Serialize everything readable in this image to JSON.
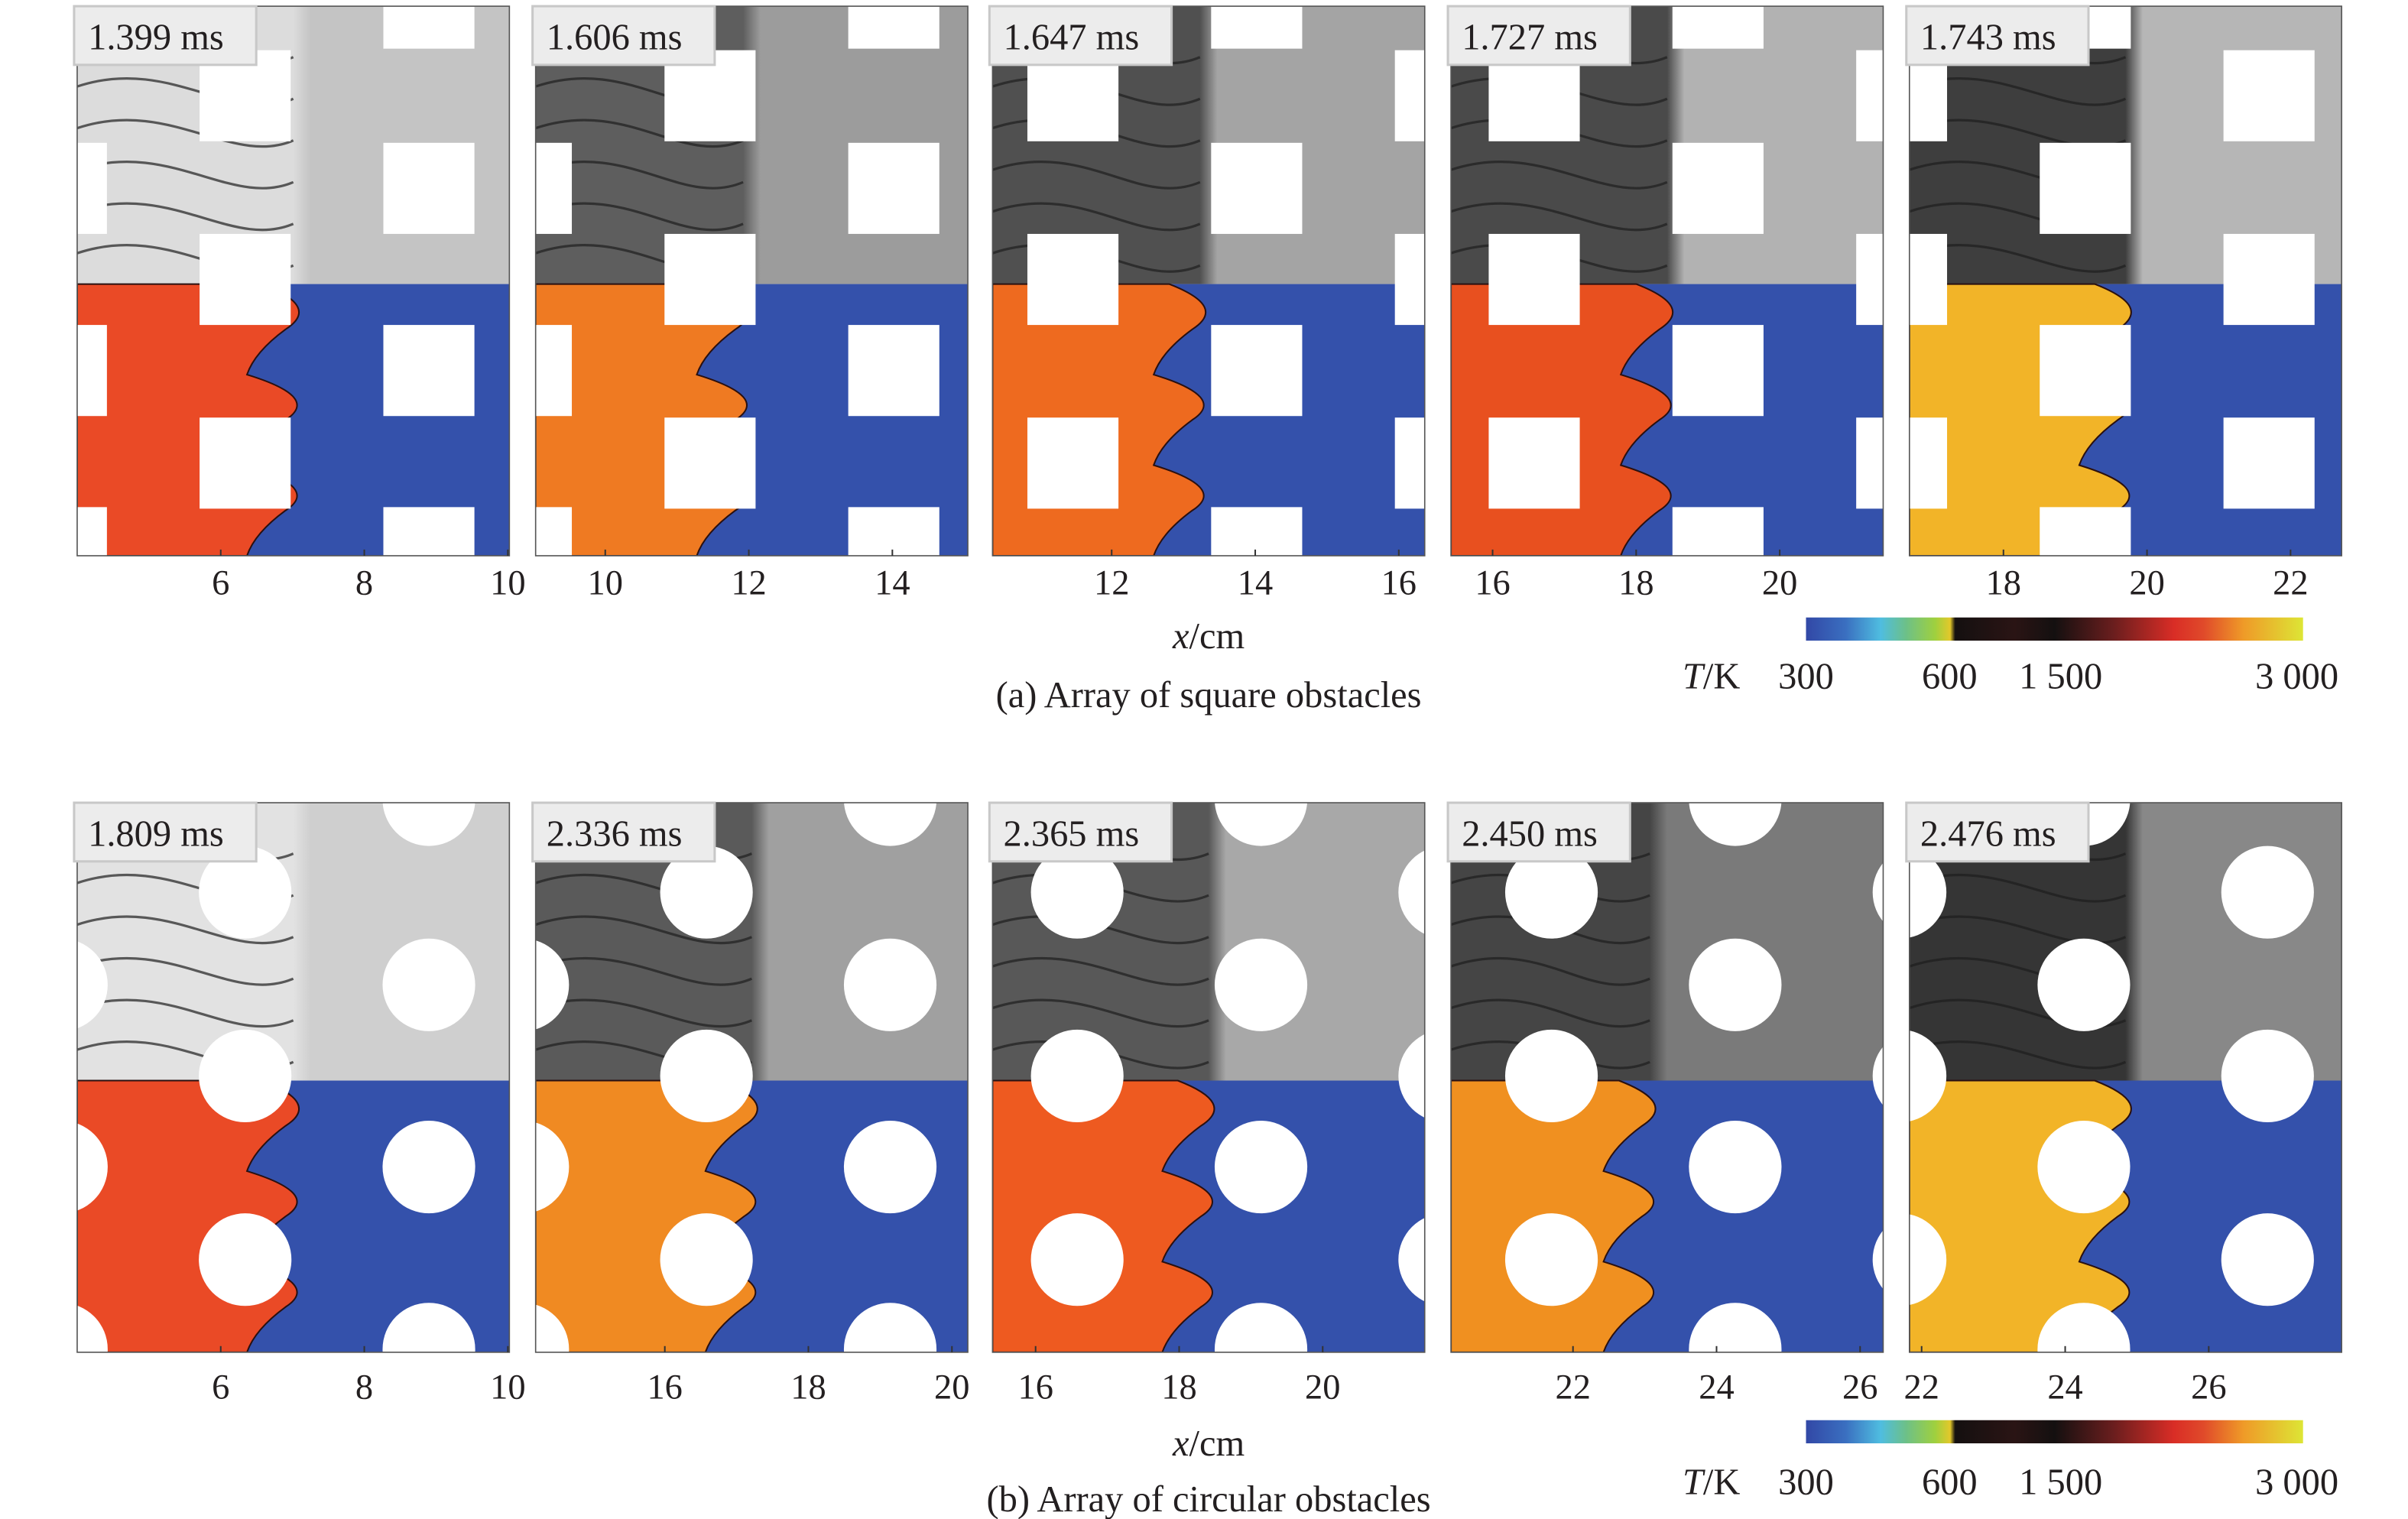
{
  "rows": [
    {
      "caption": "(a) Array of square obstacles",
      "obstacle": "square",
      "xlabel_italic": "x",
      "xlabel_unit": "/cm",
      "panels": [
        {
          "time": "1.399 ms",
          "xlim": [
            4.0,
            10.0
          ],
          "ticks": [
            "6",
            "8",
            "10"
          ]
        },
        {
          "time": "1.606 ms",
          "xlim": [
            9.03,
            15.05
          ],
          "ticks": [
            "10",
            "12",
            "14"
          ]
        },
        {
          "time": "1.647 ms",
          "xlim": [
            10.34,
            16.36
          ],
          "ticks": [
            "12",
            "14",
            "16"
          ]
        },
        {
          "time": "1.727 ms",
          "xlim": [
            15.42,
            21.44
          ],
          "ticks": [
            "16",
            "18",
            "20"
          ]
        },
        {
          "time": "1.743 ms",
          "xlim": [
            16.69,
            22.71
          ],
          "ticks": [
            "18",
            "20",
            "22"
          ]
        }
      ],
      "colorbar": {
        "label_italic": "T",
        "label_unit": "/K",
        "ticks": [
          "300",
          "600",
          "1 500",
          "3 000"
        ]
      }
    },
    {
      "caption": "(b) Array of circular obstacles",
      "obstacle": "circle",
      "xlabel_italic": "x",
      "xlabel_unit": "/cm",
      "panels": [
        {
          "time": "1.809 ms",
          "xlim": [
            4.0,
            10.0
          ],
          "ticks": [
            "6",
            "8",
            "10"
          ]
        },
        {
          "time": "2.336 ms",
          "xlim": [
            14.2,
            20.22
          ],
          "ticks": [
            "16",
            "18",
            "20"
          ]
        },
        {
          "time": "2.365 ms",
          "xlim": [
            15.4,
            21.42
          ],
          "ticks": [
            "16",
            "18",
            "20"
          ]
        },
        {
          "time": "2.450 ms",
          "xlim": [
            20.3,
            26.32
          ],
          "ticks": [
            "22",
            "24",
            "26"
          ]
        },
        {
          "time": "2.476 ms",
          "xlim": [
            21.83,
            27.85
          ],
          "ticks": [
            "22",
            "24",
            "26"
          ]
        }
      ],
      "colorbar": {
        "label_italic": "T",
        "label_unit": "/K",
        "ticks": [
          "300",
          "600",
          "1 500",
          "3 000"
        ]
      }
    }
  ],
  "colors": {
    "unburned_blue": "#3451ab",
    "flame_orange": "#ec4a24",
    "schlieren_grey": "#a9a9a9"
  },
  "colormap": [
    "#3248a6",
    "#3a6fc0",
    "#4fbde0",
    "#6cc08a",
    "#9fd03e",
    "#e3c82a",
    "#141010",
    "#2a1414",
    "#141010",
    "#6b1e1e",
    "#d92d26",
    "#e04a2a",
    "#ef9a28",
    "#dde535"
  ]
}
